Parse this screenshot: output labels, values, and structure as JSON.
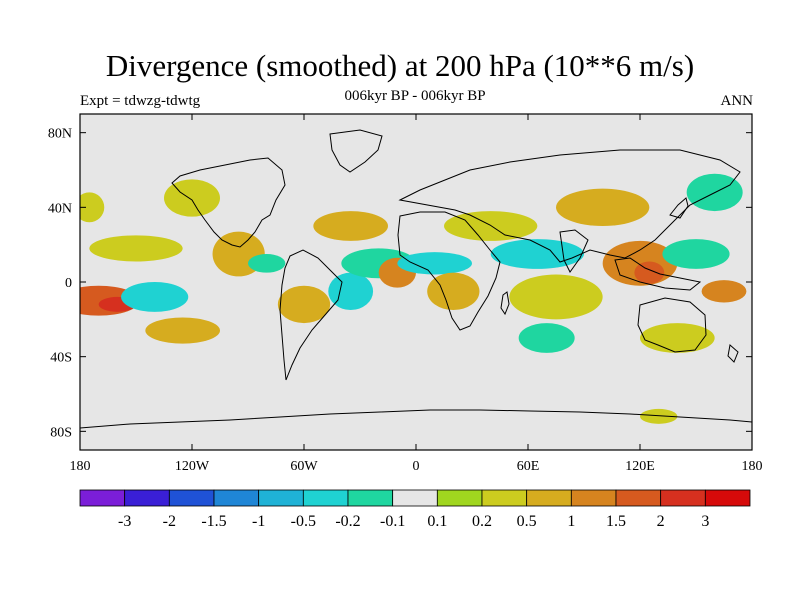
{
  "title": "Divergence (smoothed) at 200 hPa (10**6 m/s)",
  "subtitle": "006kyr BP - 006kyr BP",
  "left_label": "Expt = tdwzg-tdwtg",
  "right_label": "ANN",
  "map": {
    "lon_range": [
      -180,
      180
    ],
    "lat_range": [
      -90,
      90
    ],
    "background_color": "#e6e6e6",
    "x_ticks": [
      {
        "lon": -180,
        "label": "180"
      },
      {
        "lon": -120,
        "label": "120W"
      },
      {
        "lon": -60,
        "label": "60W"
      },
      {
        "lon": 0,
        "label": "0"
      },
      {
        "lon": 60,
        "label": "60E"
      },
      {
        "lon": 120,
        "label": "120E"
      },
      {
        "lon": 180,
        "label": "180"
      }
    ],
    "y_ticks": [
      {
        "lat": 80,
        "label": "80N"
      },
      {
        "lat": 40,
        "label": "40N"
      },
      {
        "lat": 0,
        "label": "0"
      },
      {
        "lat": -40,
        "label": "40S"
      },
      {
        "lat": -80,
        "label": "80S"
      }
    ],
    "field_blobs": [
      {
        "lon": -170,
        "lat": -10,
        "rx": 22,
        "ry": 8,
        "value": 1.5
      },
      {
        "lon": -160,
        "lat": -12,
        "rx": 10,
        "ry": 4,
        "value": 2
      },
      {
        "lon": -140,
        "lat": -8,
        "rx": 18,
        "ry": 8,
        "value": -0.5
      },
      {
        "lon": -125,
        "lat": -26,
        "rx": 20,
        "ry": 7,
        "value": 0.5
      },
      {
        "lon": -150,
        "lat": 18,
        "rx": 25,
        "ry": 7,
        "value": 0.2
      },
      {
        "lon": -175,
        "lat": 40,
        "rx": 8,
        "ry": 8,
        "value": 0.2
      },
      {
        "lon": -120,
        "lat": 45,
        "rx": 15,
        "ry": 10,
        "value": 0.2
      },
      {
        "lon": -95,
        "lat": 15,
        "rx": 14,
        "ry": 12,
        "value": 0.5
      },
      {
        "lon": -80,
        "lat": 10,
        "rx": 10,
        "ry": 5,
        "value": -0.2
      },
      {
        "lon": -60,
        "lat": -12,
        "rx": 14,
        "ry": 10,
        "value": 0.5
      },
      {
        "lon": -35,
        "lat": -5,
        "rx": 12,
        "ry": 10,
        "value": -0.5
      },
      {
        "lon": -20,
        "lat": 10,
        "rx": 20,
        "ry": 8,
        "value": -0.2
      },
      {
        "lon": -35,
        "lat": 30,
        "rx": 20,
        "ry": 8,
        "value": 0.5
      },
      {
        "lon": -10,
        "lat": 5,
        "rx": 10,
        "ry": 8,
        "value": 1
      },
      {
        "lon": 10,
        "lat": 10,
        "rx": 20,
        "ry": 6,
        "value": -0.5
      },
      {
        "lon": 20,
        "lat": -5,
        "rx": 14,
        "ry": 10,
        "value": 0.5
      },
      {
        "lon": 40,
        "lat": 30,
        "rx": 25,
        "ry": 8,
        "value": 0.2
      },
      {
        "lon": 65,
        "lat": 15,
        "rx": 25,
        "ry": 8,
        "value": -0.5
      },
      {
        "lon": 75,
        "lat": -8,
        "rx": 25,
        "ry": 12,
        "value": 0.2
      },
      {
        "lon": 70,
        "lat": -30,
        "rx": 15,
        "ry": 8,
        "value": -0.2
      },
      {
        "lon": 100,
        "lat": 40,
        "rx": 25,
        "ry": 10,
        "value": 0.5
      },
      {
        "lon": 120,
        "lat": 10,
        "rx": 20,
        "ry": 12,
        "value": 1
      },
      {
        "lon": 125,
        "lat": 5,
        "rx": 8,
        "ry": 6,
        "value": 1.5
      },
      {
        "lon": 150,
        "lat": 15,
        "rx": 18,
        "ry": 8,
        "value": -0.2
      },
      {
        "lon": 165,
        "lat": -5,
        "rx": 12,
        "ry": 6,
        "value": 1
      },
      {
        "lon": 140,
        "lat": -30,
        "rx": 20,
        "ry": 8,
        "value": 0.2
      },
      {
        "lon": 160,
        "lat": 48,
        "rx": 15,
        "ry": 10,
        "value": -0.2
      },
      {
        "lon": 130,
        "lat": -72,
        "rx": 10,
        "ry": 4,
        "value": 0.2
      }
    ]
  },
  "colorbar": {
    "colors": [
      "#7b1ed8",
      "#3a1fd6",
      "#1f52d6",
      "#1f86d6",
      "#1fb2d6",
      "#1fd2d2",
      "#1fd6a0",
      "#e6e6e6",
      "#a0d61f",
      "#cccc1f",
      "#d6ac1f",
      "#d6841f",
      "#d65a1f",
      "#d6301f",
      "#d60a0a"
    ],
    "labels": [
      "-3",
      "-2",
      "-1.5",
      "-1",
      "-0.5",
      "-0.2",
      "-0.1",
      "0.1",
      "0.2",
      "0.5",
      "1",
      "1.5",
      "2",
      "3"
    ],
    "levels": [
      -3,
      -2,
      -1.5,
      -1,
      -0.5,
      -0.2,
      -0.1,
      0.1,
      0.2,
      0.5,
      1,
      1.5,
      2,
      3
    ]
  }
}
